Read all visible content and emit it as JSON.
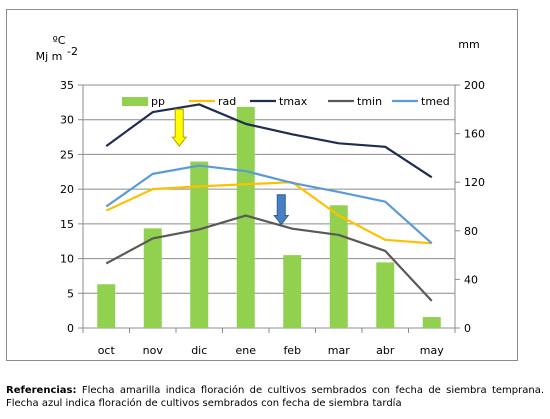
{
  "chart_data": {
    "type": "bar",
    "categories": [
      "oct",
      "nov",
      "dic",
      "ene",
      "feb",
      "mar",
      "abr",
      "may"
    ],
    "series": [
      {
        "name": "pp",
        "kind": "bar",
        "axis": "right",
        "color": "#92d050",
        "values": [
          36,
          82,
          137,
          182,
          60,
          101,
          54,
          9
        ]
      },
      {
        "name": "rad",
        "kind": "line",
        "axis": "left",
        "color": "#ffc000",
        "values": [
          16.9,
          20.0,
          20.4,
          20.7,
          21.0,
          16.2,
          12.7,
          12.2
        ]
      },
      {
        "name": "tmax",
        "kind": "line",
        "axis": "left",
        "color": "#1f2d50",
        "values": [
          26.2,
          31.1,
          32.2,
          29.4,
          27.9,
          26.6,
          26.1,
          21.7
        ]
      },
      {
        "name": "tmin",
        "kind": "line",
        "axis": "left",
        "color": "#595959",
        "values": [
          9.3,
          12.9,
          14.2,
          16.2,
          14.3,
          13.4,
          11.1,
          3.9
        ]
      },
      {
        "name": "tmed",
        "kind": "line",
        "axis": "left",
        "color": "#5b9bd5",
        "values": [
          17.5,
          22.2,
          23.4,
          22.6,
          20.9,
          19.6,
          18.2,
          12.2
        ]
      }
    ],
    "y_left": {
      "label_line1": "ºC",
      "label_line2": "Mj m",
      "label_sup": "-2",
      "ylim": [
        0,
        35
      ],
      "ticks": [
        0,
        5,
        10,
        15,
        20,
        25,
        30,
        35
      ]
    },
    "y_right": {
      "label": "mm",
      "ylim": [
        0,
        200
      ],
      "ticks": [
        0,
        40,
        80,
        120,
        160,
        200
      ]
    },
    "grid": true,
    "legend_position": "top",
    "annotations": [
      {
        "type": "arrow",
        "color": "#ffff00",
        "stroke": "#b8a000",
        "category": "dic",
        "y_top": 31.5,
        "y_bottom": 26.2
      },
      {
        "type": "arrow",
        "color": "#4a7ebf",
        "stroke": "#2f5f9a",
        "category": "feb",
        "y_top": 19.2,
        "y_bottom": 14.9
      }
    ]
  },
  "caption": {
    "bold": "Referencias:",
    "text": " Flecha amarilla indica floración de cultivos sembrados con fecha de siembra temprana.    Flecha azul indica floración de cultivos sembrados con fecha de siembra tardía"
  }
}
